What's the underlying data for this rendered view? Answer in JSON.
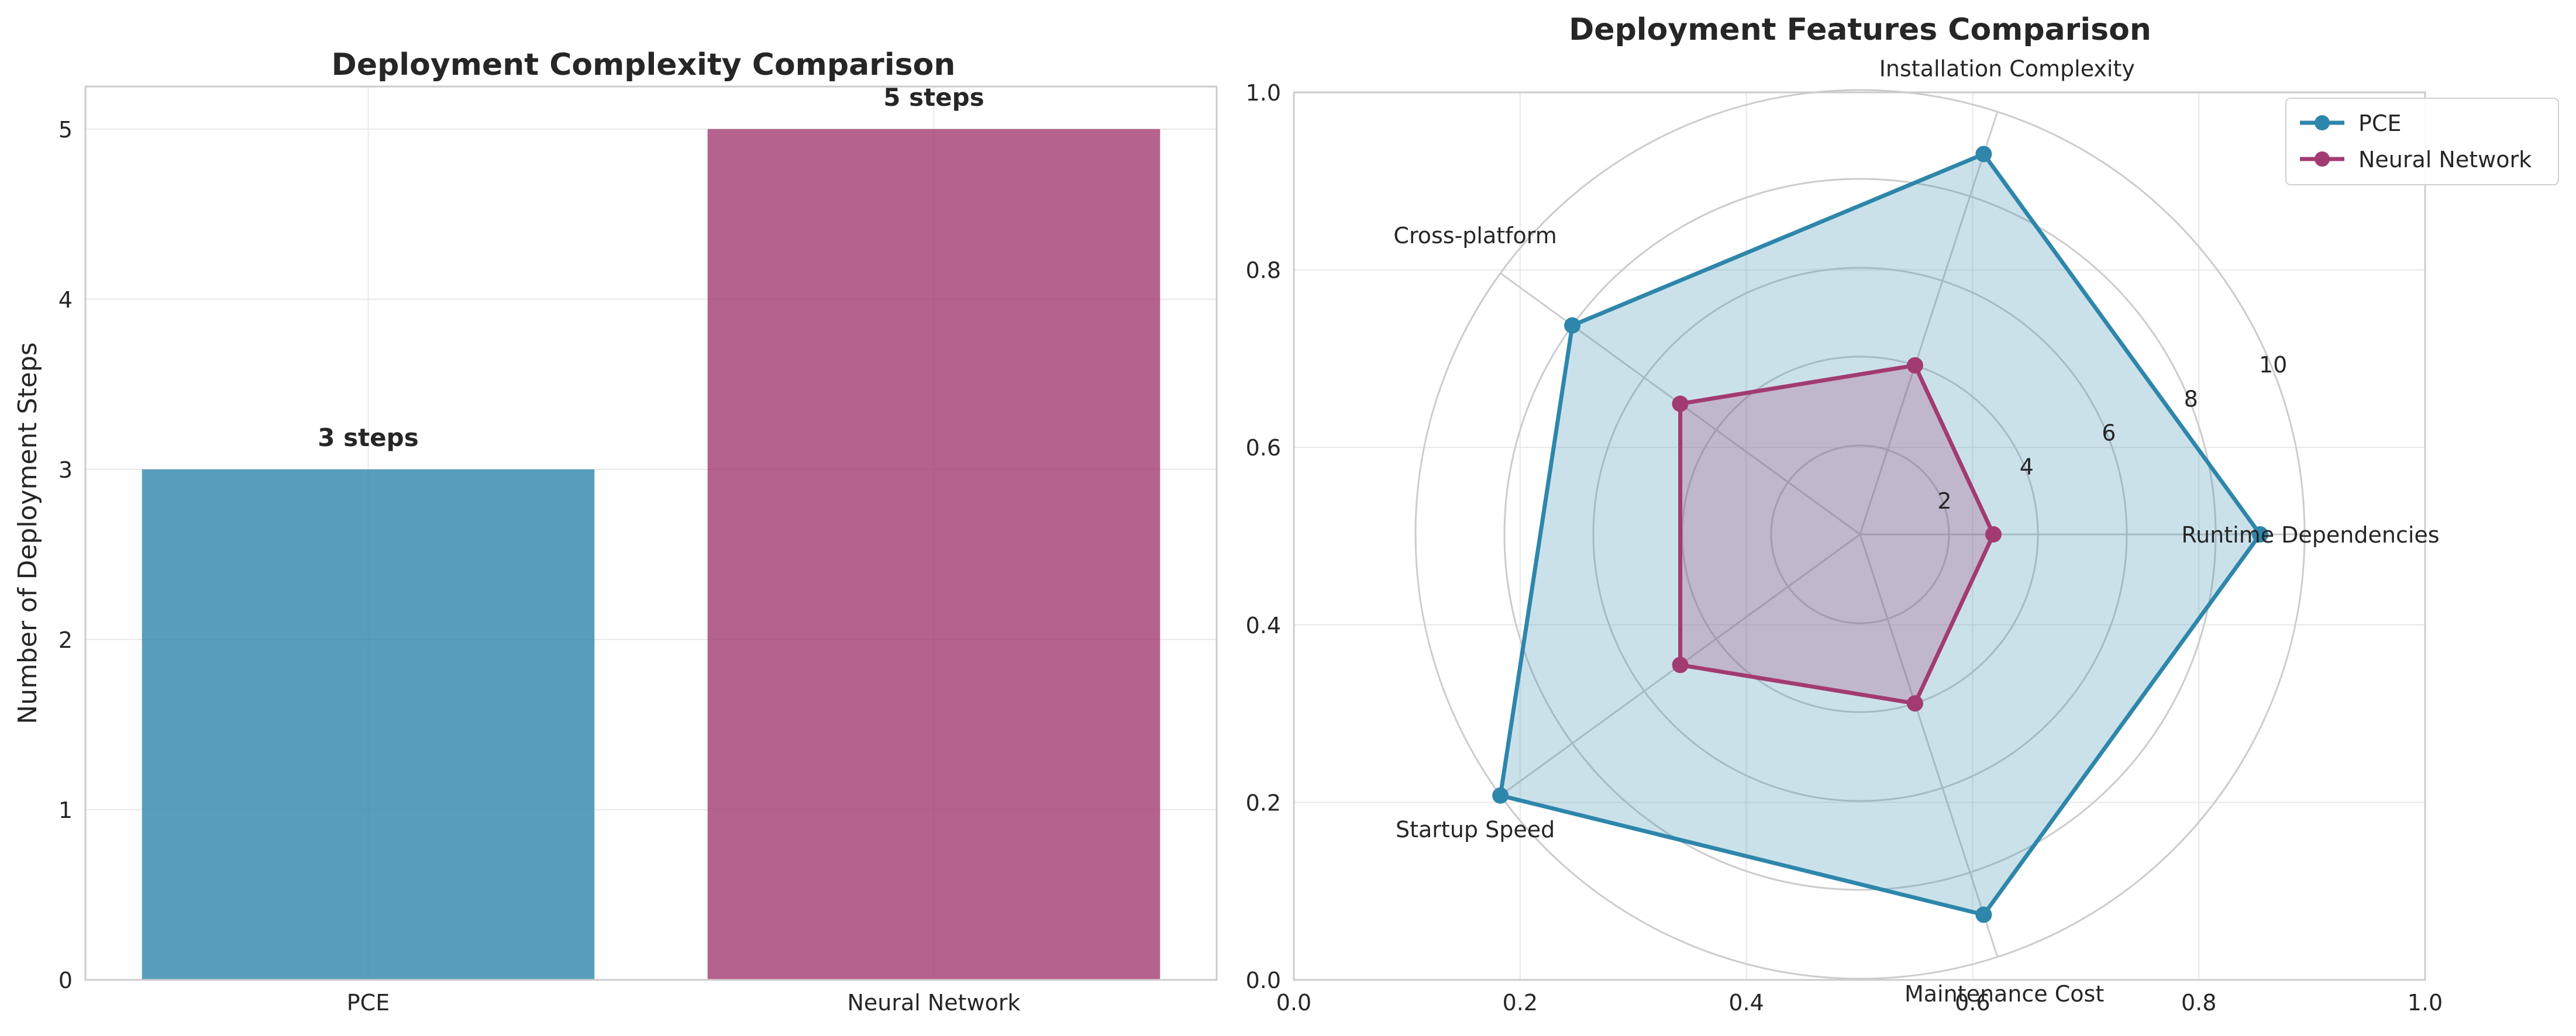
{
  "chart_data": [
    {
      "type": "bar",
      "title": "Deployment Complexity Comparison",
      "xlabel": "",
      "ylabel": "Number of Deployment Steps",
      "categories": [
        "PCE",
        "Neural Network"
      ],
      "values": [
        3,
        5
      ],
      "data_labels": [
        "3 steps",
        "5 steps"
      ],
      "colors": [
        "#2e86ab",
        "#a23b72"
      ],
      "ylim": [
        0,
        5.25
      ],
      "yticks": [
        "0",
        "1",
        "2",
        "3",
        "4",
        "5"
      ],
      "grid": true
    },
    {
      "type": "radar",
      "title": "Deployment Features Comparison",
      "axes": [
        "Runtime Dependencies",
        "Installation Complexity",
        "Cross-platform",
        "Startup Speed",
        "Maintenance Cost"
      ],
      "rlim": [
        0,
        10
      ],
      "rticks": [
        "2",
        "4",
        "6",
        "8",
        "10"
      ],
      "background_axis_ticks": [
        "0.0",
        "0.2",
        "0.4",
        "0.6",
        "0.8",
        "1.0"
      ],
      "series": [
        {
          "name": "PCE",
          "color": "#2e86ab",
          "values": [
            9,
            9,
            8,
            10,
            9
          ]
        },
        {
          "name": "Neural Network",
          "color": "#a23b72",
          "values": [
            3,
            4,
            5,
            5,
            4
          ]
        }
      ],
      "legend": "top-right",
      "grid": true
    }
  ]
}
